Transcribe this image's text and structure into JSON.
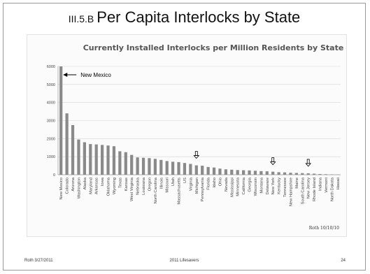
{
  "slide": {
    "section": "III.5.B",
    "title": "Per Capita Interlocks by State",
    "footer_left": "Roth 3/27/2011",
    "footer_center": "2011 Lifesavers",
    "page_number": "24"
  },
  "chart_data": {
    "type": "bar",
    "title": "Currently Installed Interlocks per Million Residents by State",
    "source_note": "Roth 10/10/10",
    "ylim": [
      0,
      6000
    ],
    "yticks": [
      0,
      1000,
      2000,
      3000,
      4000,
      5000,
      6000
    ],
    "grid": true,
    "categories": [
      "New Mexico",
      "Colorado",
      "Arizona",
      "Washington",
      "Alaska",
      "Maryland",
      "Arkansas",
      "Iowa",
      "Oklahoma",
      "Wyoming",
      "Texas",
      "Kansas",
      "West Virginia",
      "Nebraska",
      "Louisiana",
      "Oregon",
      "North Carolina",
      "Illinois",
      "Missouri",
      "Utah",
      "Massachusetts",
      "US",
      "Virginia",
      "Michigan",
      "Pennsylvania",
      "Florida",
      "Idaho",
      "Ohio",
      "Nevada",
      "Mississippi",
      "Minnesota",
      "California",
      "Georgia",
      "Wisconsin",
      "Montana",
      "Delaware",
      "New York",
      "Kentucky",
      "Tennessee",
      "New Hampshire",
      "Maine",
      "South Carolina",
      "New Jersey",
      "Rhode Island",
      "Indiana",
      "Vermont",
      "North Dakota",
      "Hawaii"
    ],
    "values": [
      6000,
      3400,
      2750,
      1950,
      1800,
      1700,
      1680,
      1650,
      1620,
      1580,
      1300,
      1250,
      1100,
      960,
      940,
      920,
      880,
      820,
      760,
      720,
      700,
      650,
      600,
      520,
      500,
      430,
      400,
      340,
      300,
      280,
      260,
      250,
      240,
      220,
      200,
      190,
      170,
      140,
      130,
      110,
      100,
      90,
      80,
      60,
      40,
      30,
      20,
      10
    ],
    "annotations": [
      {
        "text": "New Mexico",
        "category": "New Mexico",
        "arrow": "left"
      },
      {
        "text": "",
        "category": "Michigan",
        "arrow": "down"
      },
      {
        "text": "",
        "category": "New York",
        "arrow": "down"
      },
      {
        "text": "",
        "category": "New Jersey",
        "arrow": "down"
      }
    ]
  }
}
